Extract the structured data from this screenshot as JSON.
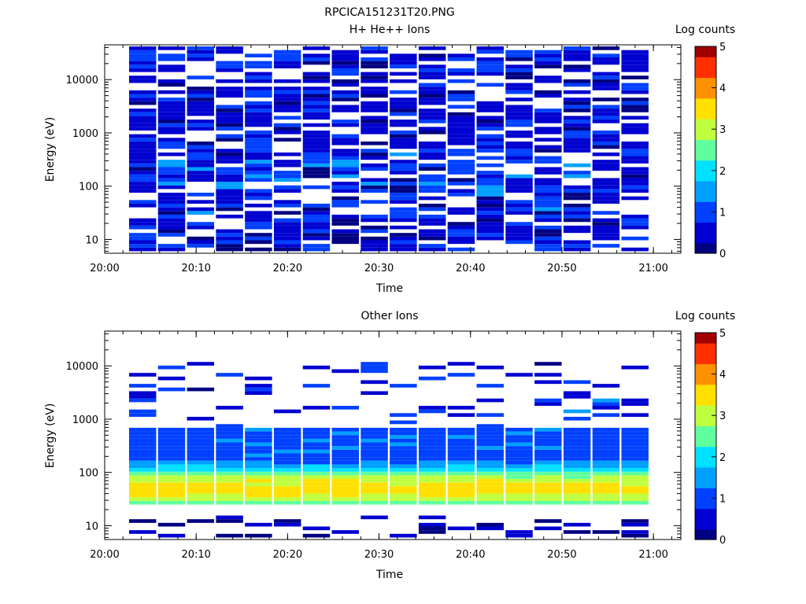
{
  "figure_title": "RPCICA151231T20.PNG",
  "colormap": [
    "#000080",
    "#0000d0",
    "#0040ff",
    "#00a0ff",
    "#00e0ff",
    "#60ffa0",
    "#c0ff40",
    "#ffe000",
    "#ff9000",
    "#ff3000",
    "#a00000"
  ],
  "chart_data": [
    {
      "type": "heatmap",
      "title": "H+ He++ Ions",
      "xlabel": "Time",
      "ylabel": "Energy (eV)",
      "yscale": "log",
      "xlim": [
        "20:00",
        "21:03"
      ],
      "ylim": [
        5.5,
        45000
      ],
      "xticks": [
        "20:00",
        "20:10",
        "20:20",
        "20:30",
        "20:40",
        "20:50",
        "21:00"
      ],
      "yticks": [
        "10",
        "100",
        "1000",
        "10000"
      ],
      "time_bins": [
        "20:02:40",
        "20:05:50",
        "20:09:00",
        "20:12:10",
        "20:15:20",
        "20:18:30",
        "20:21:40",
        "20:24:50",
        "20:28:00",
        "20:31:10",
        "20:34:20",
        "20:37:30",
        "20:40:40",
        "20:43:50",
        "20:47:00",
        "20:50:10",
        "20:53:20",
        "20:56:30"
      ],
      "energy_range_eV": [
        6,
        42000
      ],
      "dominant_log_counts": "0-1.5",
      "colorbar": {
        "label": "Log counts",
        "range": [
          0,
          5
        ],
        "ticks": [
          "0",
          "1",
          "2",
          "3",
          "4",
          "5"
        ]
      }
    },
    {
      "type": "heatmap",
      "title": "Other Ions",
      "xlabel": "Time",
      "ylabel": "Energy (eV)",
      "yscale": "log",
      "xlim": [
        "20:00",
        "21:03"
      ],
      "ylim": [
        5.5,
        45000
      ],
      "xticks": [
        "20:00",
        "20:10",
        "20:20",
        "20:30",
        "20:40",
        "20:50",
        "21:00"
      ],
      "yticks": [
        "10",
        "100",
        "1000",
        "10000"
      ],
      "time_bins": [
        "20:02:40",
        "20:05:50",
        "20:09:00",
        "20:12:10",
        "20:15:20",
        "20:18:30",
        "20:21:40",
        "20:24:50",
        "20:28:00",
        "20:31:10",
        "20:34:20",
        "20:37:30",
        "20:40:40",
        "20:43:50",
        "20:47:00",
        "20:50:10",
        "20:53:20",
        "20:56:30"
      ],
      "energy_range_eV": [
        6,
        42000
      ],
      "peak_energy_eV": 50,
      "peak_log_counts": 3.3,
      "colorbar": {
        "label": "Log counts",
        "range": [
          0,
          5
        ],
        "ticks": [
          "0",
          "1",
          "2",
          "3",
          "4",
          "5"
        ]
      }
    }
  ]
}
